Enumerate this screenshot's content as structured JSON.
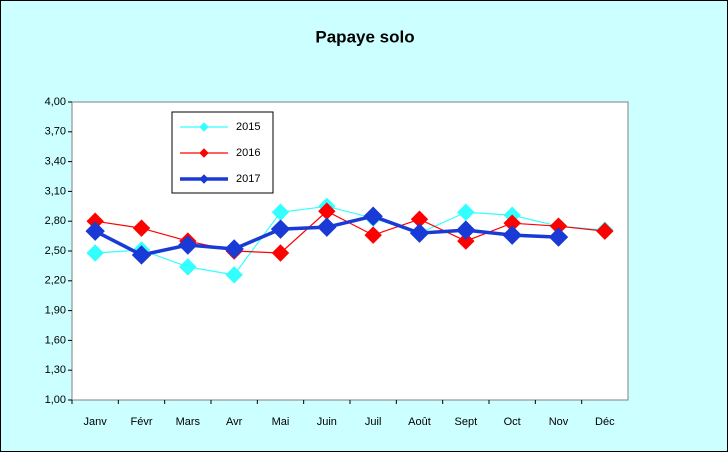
{
  "chart_data": {
    "type": "line",
    "title": "Papaye solo",
    "categories": [
      "Janv",
      "Févr",
      "Mars",
      "Avr",
      "Mai",
      "Juin",
      "Juil",
      "Août",
      "Sept",
      "Oct",
      "Nov",
      "Déc"
    ],
    "series": [
      {
        "name": "2015",
        "color": "#33ffff",
        "values": [
          2.48,
          2.51,
          2.34,
          2.26,
          2.89,
          2.95,
          2.83,
          2.68,
          2.89,
          2.86,
          2.75,
          2.71
        ]
      },
      {
        "name": "2016",
        "color": "#ff0000",
        "values": [
          2.8,
          2.73,
          2.6,
          2.5,
          2.48,
          2.9,
          2.66,
          2.82,
          2.6,
          2.78,
          2.75,
          2.7
        ]
      },
      {
        "name": "2017",
        "color": "#1a3ad6",
        "values": [
          2.7,
          2.46,
          2.56,
          2.52,
          2.72,
          2.74,
          2.85,
          2.68,
          2.71,
          2.66,
          2.64,
          null
        ]
      }
    ],
    "ylim": [
      1,
      4
    ],
    "yticks": [
      {
        "value": 1,
        "label": "1,00"
      },
      {
        "value": 1.3,
        "label": "1,30"
      },
      {
        "value": 1.6,
        "label": "1,60"
      },
      {
        "value": 1.9,
        "label": "1,90"
      },
      {
        "value": 2.2,
        "label": "2,20"
      },
      {
        "value": 2.5,
        "label": "2,50"
      },
      {
        "value": 2.8,
        "label": "2,80"
      },
      {
        "value": 3.1,
        "label": "3,10"
      },
      {
        "value": 3.4,
        "label": "3,40"
      },
      {
        "value": 3.7,
        "label": "3,70"
      },
      {
        "value": 4,
        "label": "4,00"
      }
    ],
    "legend": "upper left"
  }
}
